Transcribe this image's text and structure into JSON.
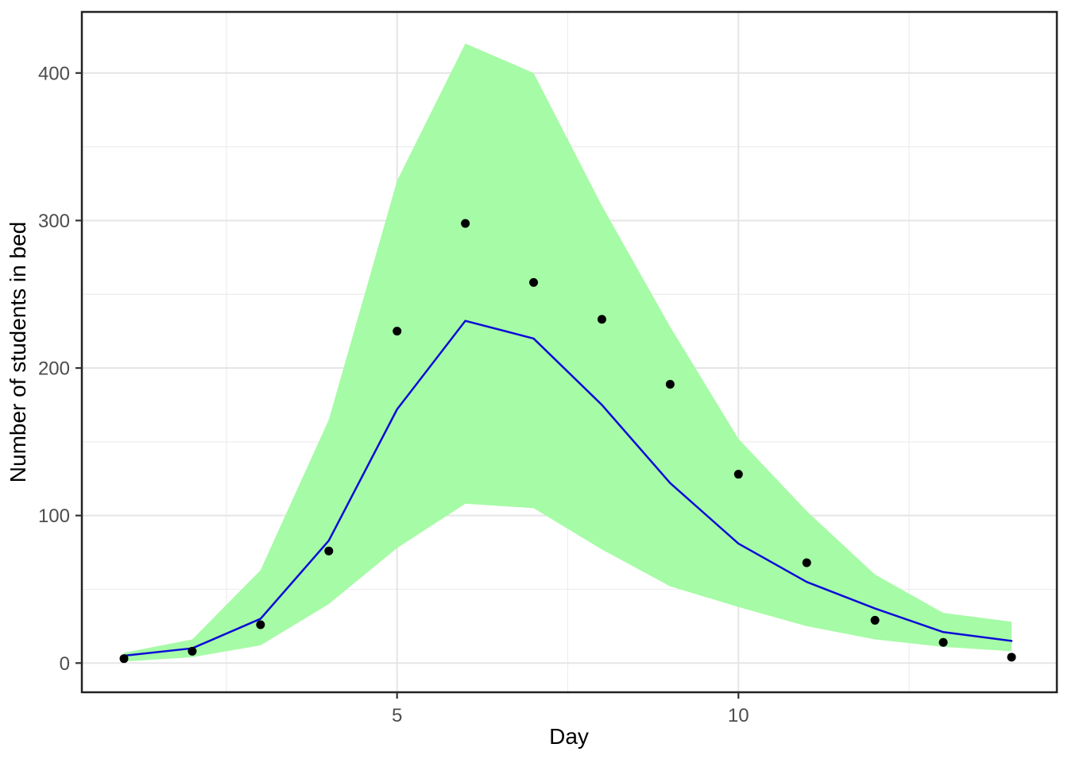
{
  "figure": {
    "background": "#ffffff",
    "panel": {
      "border_color": "#222222",
      "grid_major_color": "#e5e5e5",
      "grid_minor_color": "#ededed",
      "tick_color": "#333333",
      "tick_label_color": "#4d4d4d"
    }
  },
  "chart_data": {
    "type": "line",
    "title": "",
    "xlabel": "Day",
    "ylabel": "Number of students in bed",
    "x": [
      1,
      2,
      3,
      4,
      5,
      6,
      7,
      8,
      9,
      10,
      11,
      12,
      13,
      14
    ],
    "series": [
      {
        "name": "observed-points",
        "type": "scatter",
        "color": "#000000",
        "marker_radius": 5.5,
        "values": [
          3,
          8,
          26,
          76,
          225,
          298,
          258,
          233,
          189,
          128,
          68,
          29,
          14,
          4
        ]
      },
      {
        "name": "model-fit-line",
        "type": "line",
        "color": "#0b0bd8",
        "stroke_width": 2.5,
        "values": [
          5,
          10,
          30,
          83,
          172,
          232,
          220,
          175,
          122,
          81,
          55,
          37,
          21,
          15
        ]
      }
    ],
    "ribbon": {
      "name": "credible-interval-band",
      "fill": "#a6fba6",
      "upper": [
        7,
        16,
        63,
        165,
        327,
        420,
        400,
        310,
        228,
        152,
        103,
        60,
        34,
        28
      ],
      "lower": [
        1,
        4,
        12,
        40,
        78,
        108,
        105,
        77,
        52,
        38,
        25,
        16,
        11,
        8
      ]
    },
    "xlim": [
      0.383,
      14.664
    ],
    "ylim": [
      -19.8,
      441.4
    ],
    "x_ticks": [
      5,
      10
    ],
    "x_minor_ticks": [
      2.5,
      7.5,
      12.5
    ],
    "y_ticks": [
      0,
      100,
      200,
      300,
      400
    ],
    "y_minor_ticks": [
      50,
      150,
      250,
      350
    ],
    "grid": true,
    "legend": "none"
  }
}
